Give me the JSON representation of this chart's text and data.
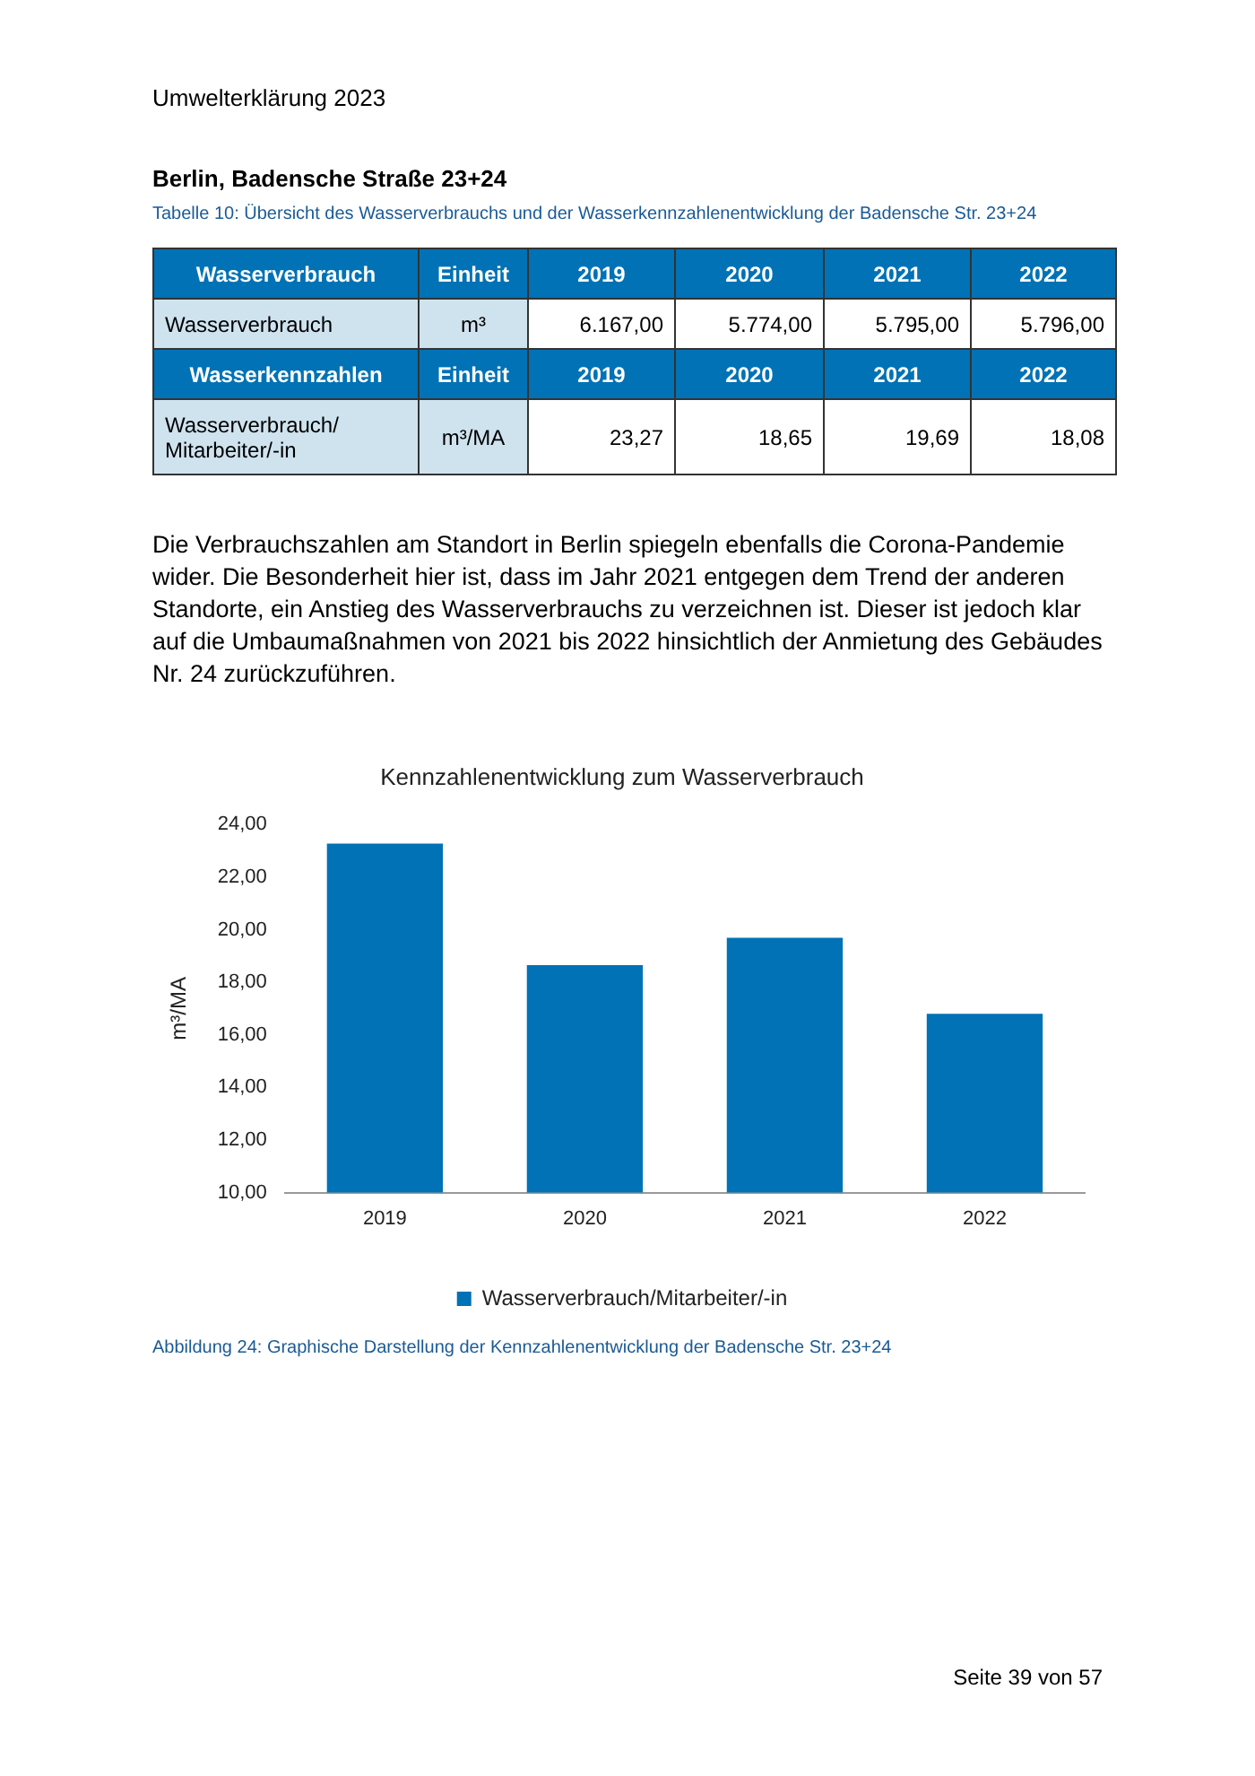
{
  "chart_data": {
    "type": "bar",
    "title": "Kennzahlenentwicklung zum Wasserverbrauch",
    "ylabel": "m³/MA",
    "categories": [
      "2019",
      "2020",
      "2021",
      "2022"
    ],
    "series": [
      {
        "name": "Wasserverbrauch/Mitarbeiter/-in",
        "color": "#0072b5",
        "values": [
          23.27,
          18.65,
          19.69,
          16.8
        ]
      }
    ],
    "ylim": [
      10,
      24
    ],
    "yticks": [
      {
        "value": 10,
        "label": "10,00"
      },
      {
        "value": 12,
        "label": "12,00"
      },
      {
        "value": 14,
        "label": "14,00"
      },
      {
        "value": 16,
        "label": "16,00"
      },
      {
        "value": 18,
        "label": "18,00"
      },
      {
        "value": 20,
        "label": "20,00"
      },
      {
        "value": 22,
        "label": "22,00"
      },
      {
        "value": 24,
        "label": "24,00"
      }
    ],
    "grid": false,
    "legend": "bottom",
    "annotations": [
      "Umwelterklärung 2023",
      "Berlin, Badensche Straße 23+24",
      "Tabelle 10: Übersicht des Wasserverbrauchs und der Wasserkennzahlenentwicklung der Badensche Str. 23+24",
      "Wasserverbrauch",
      "Einheit",
      "2019",
      "2020",
      "2021",
      "2022",
      "Wasserverbrauch",
      "m³",
      "6.167,00",
      "5.774,00",
      "5.795,00",
      "5.796,00",
      "Wasserkennzahlen",
      "Einheit",
      "2019",
      "2020",
      "2021",
      "2022",
      "Wasserverbrauch/ Mitarbeiter/-in",
      "m³/MA",
      "23,27",
      "18,65",
      "19,69",
      "18,08",
      "Die Verbrauchszahlen am Standort in Berlin spiegeln ebenfalls die Corona-Pandemie wider.  Die Besonderheit hier ist, dass im Jahr 2021 entgegen dem Trend der anderen Standorte, ein Anstieg des Wasserverbrauchs zu verzeichnen ist. Dieser ist jedoch klar auf die Umbaumaßnahmen von 2021 bis 2022 hinsichtlich der Anmietung des Gebäudes Nr. 24 zurückzuführen.",
      "Abbildung 24: Graphische Darstellung der Kennzahlenentwicklung der Badensche Str. 23+24",
      "Seite 39 von 57"
    ]
  }
}
